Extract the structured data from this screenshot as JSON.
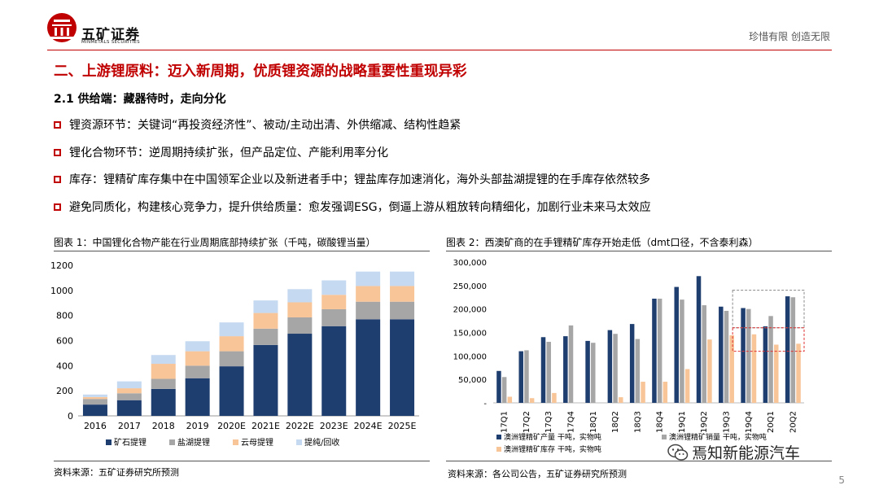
{
  "header": {
    "logo_name": "五矿证券",
    "logo_sub": "MINMETALS SECURITIES",
    "slogan": "珍惜有限  创造无限"
  },
  "section_title": "二、上游锂原料：迈入新周期，优质锂资源的战略重要性重现异彩",
  "subsection_title": "2.1 供给端：藏器待时，走向分化",
  "bullets": [
    "锂资源环节：关键词“再投资经济性”、被动/主动出清、外供缩减、结构性趋紧",
    "锂化合物环节：逆周期持续扩张，但产品定位、产能利用率分化",
    "库存：锂精矿库存集中在中国领军企业以及新进者手中；锂盐库存加速消化，海外头部盐湖提锂的在手库存依然较多",
    "避免同质化，构建核心竞争力，提升供给质量：愈发强调ESG，倒逼上游从粗放转向精细化，加剧行业未来马太效应"
  ],
  "figure1": {
    "title": "图表 1：中国锂化合物产能在行业周期底部持续扩张（千吨，碳酸锂当量）",
    "source": "资料来源：五矿证券研究所预测"
  },
  "figure2": {
    "title": "图表 2：西澳矿商的在手锂精矿库存开始走低（dmt口径，不含泰利森）",
    "source": "资料来源：各公司公告，五矿证券研究所预测"
  },
  "page_number": "5",
  "watermark": "焉知新能源汽车",
  "chart_data": [
    {
      "type": "bar",
      "stacked": true,
      "categories": [
        "2016",
        "2017",
        "2018",
        "2019",
        "2020E",
        "2021E",
        "2022E",
        "2023E",
        "2024E",
        "2025E"
      ],
      "ylim": [
        0,
        1200
      ],
      "yticks": [
        0,
        200,
        400,
        600,
        800,
        1000,
        1200
      ],
      "series": [
        {
          "name": "矿石提锂",
          "color": "#1f3e70",
          "values": [
            90,
            125,
            215,
            300,
            395,
            565,
            655,
            715,
            770,
            770
          ]
        },
        {
          "name": "盐湖提锂",
          "color": "#a6a6a6",
          "values": [
            45,
            55,
            80,
            100,
            120,
            130,
            130,
            135,
            140,
            140
          ]
        },
        {
          "name": "云母提锂",
          "color": "#f8c598",
          "values": [
            15,
            40,
            120,
            115,
            120,
            125,
            120,
            115,
            125,
            125
          ]
        },
        {
          "name": "提纯/回收",
          "color": "#c5d9f1",
          "values": [
            20,
            55,
            70,
            80,
            110,
            100,
            105,
            115,
            115,
            115
          ]
        }
      ],
      "legend": "bottom"
    },
    {
      "type": "bar",
      "categories": [
        "17Q1",
        "17Q2",
        "17Q3",
        "17Q4",
        "18Q1",
        "18Q2",
        "18Q3",
        "18Q4",
        "19Q1",
        "19Q2",
        "19Q3",
        "19Q4",
        "20Q1",
        "20Q2"
      ],
      "ylim": [
        0,
        300000
      ],
      "yticks": [
        0,
        50000,
        100000,
        150000,
        200000,
        250000,
        300000
      ],
      "yticklabels": [
        "-",
        "50,000",
        "100,000",
        "150,000",
        "200,000",
        "250,000",
        "300,000"
      ],
      "series": [
        {
          "name": "澳洲锂精矿产量 干吨，实物吨",
          "color": "#1f3e70",
          "values": [
            68000,
            110000,
            140000,
            142000,
            132000,
            155000,
            168000,
            222000,
            247000,
            270000,
            205000,
            202000,
            163000,
            227000
          ]
        },
        {
          "name": "澳洲锂精矿销量 干吨，实物吨",
          "color": "#a6a6a6",
          "values": [
            55000,
            112000,
            130000,
            165000,
            128000,
            147000,
            136000,
            222000,
            220000,
            208000,
            196000,
            200000,
            185000,
            225000
          ]
        },
        {
          "name": "澳洲锂精矿库存 干吨，实物吨",
          "color": "#f8c598",
          "values": [
            13000,
            10000,
            21000,
            0,
            0,
            12000,
            45000,
            45000,
            72000,
            135000,
            144000,
            146000,
            124000,
            126000
          ]
        }
      ],
      "legend": "bottom"
    }
  ]
}
